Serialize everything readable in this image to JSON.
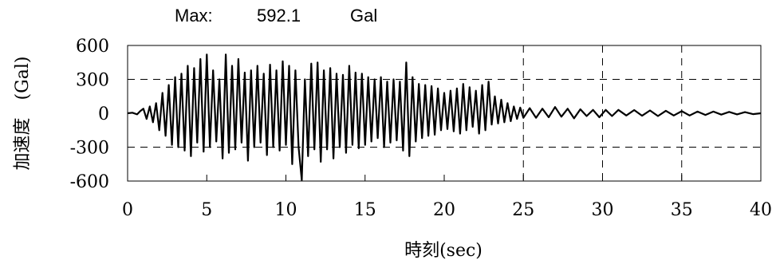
{
  "header": {
    "max_label": "Max:",
    "max_value": "592.1",
    "max_unit": "Gal"
  },
  "chart_data": {
    "type": "line",
    "xlabel": "時刻(sec)",
    "ylabel": "加速度　(Gal)",
    "xlim": [
      0,
      40
    ],
    "ylim": [
      -600,
      600
    ],
    "x_ticks": [
      "0",
      "5",
      "10",
      "15",
      "20",
      "25",
      "30",
      "35",
      "40"
    ],
    "y_ticks": [
      "600",
      "300",
      "0",
      "-300",
      "-600"
    ],
    "x_tick_values": [
      0,
      5,
      10,
      15,
      20,
      25,
      30,
      35,
      40
    ],
    "y_tick_values": [
      600,
      300,
      0,
      -300,
      -600
    ],
    "gridlines_x": [
      25,
      30,
      35
    ],
    "gridlines_y": [
      300,
      -300
    ],
    "grid": "dashed",
    "peak": {
      "x": 11.0,
      "y": -592.1
    },
    "series": [
      {
        "x": [
          0,
          0.3,
          0.6,
          0.8,
          1.0,
          1.2,
          1.4,
          1.6,
          1.8,
          2.0,
          2.2,
          2.4,
          2.6,
          2.8,
          3.0,
          3.2,
          3.4,
          3.6,
          3.8,
          4.0,
          4.2,
          4.4,
          4.6,
          4.8,
          5.0,
          5.2,
          5.4,
          5.6,
          5.8,
          6.0,
          6.2,
          6.4,
          6.6,
          6.8,
          7.0,
          7.2,
          7.4,
          7.6,
          7.8,
          8.0,
          8.2,
          8.4,
          8.6,
          8.8,
          9.0,
          9.2,
          9.4,
          9.6,
          9.8,
          10.0,
          10.2,
          10.4,
          10.6,
          10.8,
          11.0,
          11.2,
          11.4,
          11.6,
          11.8,
          12.0,
          12.2,
          12.4,
          12.6,
          12.8,
          13.0,
          13.2,
          13.4,
          13.6,
          13.8,
          14.0,
          14.2,
          14.4,
          14.6,
          14.8,
          15.0,
          15.2,
          15.4,
          15.6,
          15.8,
          16.0,
          16.2,
          16.4,
          16.6,
          16.8,
          17.0,
          17.2,
          17.4,
          17.6,
          17.8,
          18.0,
          18.2,
          18.4,
          18.6,
          18.8,
          19.0,
          19.2,
          19.4,
          19.6,
          19.8,
          20.0,
          20.2,
          20.4,
          20.6,
          20.8,
          21.0,
          21.2,
          21.4,
          21.6,
          21.8,
          22.0,
          22.2,
          22.4,
          22.6,
          22.8,
          23.0,
          23.2,
          23.4,
          23.6,
          23.8,
          24.0,
          24.2,
          24.4,
          24.6,
          24.8,
          25.0,
          25.4,
          25.8,
          26.2,
          26.6,
          27.0,
          27.4,
          27.8,
          28.2,
          28.6,
          29.0,
          29.4,
          29.8,
          30.2,
          30.6,
          31.0,
          31.5,
          32.0,
          32.5,
          33.0,
          33.5,
          34.0,
          34.5,
          35.0,
          35.5,
          36.0,
          36.5,
          37.0,
          37.5,
          38.0,
          38.5,
          39.0,
          39.5,
          40.0
        ],
        "values": [
          0,
          5,
          -10,
          20,
          40,
          -50,
          60,
          -80,
          90,
          -150,
          180,
          -200,
          250,
          -280,
          320,
          -300,
          350,
          -330,
          420,
          -380,
          400,
          -260,
          480,
          -340,
          520,
          -300,
          380,
          -250,
          300,
          -400,
          520,
          -350,
          420,
          -320,
          480,
          -260,
          360,
          -420,
          380,
          -300,
          420,
          -260,
          350,
          -370,
          430,
          -300,
          380,
          -330,
          460,
          -280,
          420,
          -450,
          380,
          -300,
          -592.1,
          300,
          -380,
          440,
          -320,
          450,
          -430,
          380,
          -320,
          400,
          -400,
          350,
          -300,
          340,
          -350,
          420,
          -280,
          360,
          -310,
          350,
          -280,
          320,
          -250,
          300,
          -220,
          320,
          -300,
          280,
          -260,
          300,
          -240,
          280,
          -330,
          450,
          -380,
          320,
          -250,
          260,
          -220,
          250,
          -200,
          240,
          -190,
          220,
          -150,
          180,
          -140,
          200,
          -160,
          220,
          -180,
          260,
          -150,
          230,
          -120,
          200,
          -180,
          250,
          -150,
          280,
          -100,
          150,
          -90,
          120,
          -80,
          90,
          -70,
          60,
          -50,
          50,
          -40,
          45,
          -40,
          40,
          -35,
          55,
          -30,
          40,
          -45,
          35,
          -25,
          30,
          -35,
          30,
          -25,
          30,
          -20,
          28,
          -22,
          25,
          -25,
          22,
          -20,
          18,
          -20,
          15,
          -15,
          15,
          -12,
          12,
          -10,
          10,
          -8,
          0
        ]
      }
    ]
  }
}
